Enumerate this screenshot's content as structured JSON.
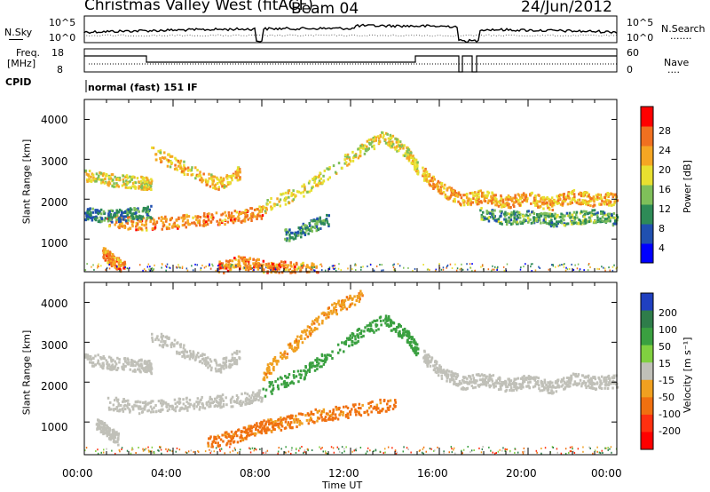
{
  "header": {
    "title": "Christmas Valley West (fitACF)",
    "beam": "Beam 04",
    "date": "24/Jun/2012"
  },
  "noise_panel": {
    "left_label": "N.Sky",
    "right_label": "N.Search",
    "left_ticks": [
      "10^5",
      "10^0"
    ],
    "right_ticks": [
      "10^5",
      "10^0"
    ],
    "legend_dots": "......."
  },
  "freq_panel": {
    "left_label_line1": "Freq.",
    "left_label_line2": "[MHz]",
    "right_label": "Nave",
    "left_ticks": [
      "18",
      "8"
    ],
    "right_ticks": [
      "60",
      "0"
    ],
    "legend_dots": "...."
  },
  "cpid": {
    "label": "CPID",
    "mode": "normal (fast) 151 IF"
  },
  "chart_data": [
    {
      "type": "heatmap",
      "panel": "power",
      "ylabel": "Slant Range [km]",
      "ylim": [
        180,
        4500
      ],
      "xlim": [
        0,
        24
      ],
      "yticks": [
        "1000",
        "2000",
        "3000",
        "4000"
      ],
      "colorbar": {
        "label": "Power [dB]",
        "ticks": [
          "28",
          "24",
          "20",
          "16",
          "12",
          "8",
          "4"
        ],
        "colors": [
          "#0000ff",
          "#2050b0",
          "#2e8b57",
          "#7fbf5a",
          "#e8e030",
          "#f5a623",
          "#f07020",
          "#ff0000"
        ]
      },
      "bands": [
        {
          "t": [
            0.0,
            1.2,
            2.4,
            3.0
          ],
          "r": [
            2600,
            2500,
            2450,
            2400
          ],
          "v": 18
        },
        {
          "t": [
            1.0,
            2.5,
            4.0,
            5.5,
            7.0,
            8.0
          ],
          "r": [
            1500,
            1400,
            1450,
            1520,
            1600,
            1700
          ],
          "v": 24
        },
        {
          "t": [
            0.8,
            1.2,
            1.8
          ],
          "r": [
            700,
            500,
            300
          ],
          "v": 24
        },
        {
          "t": [
            3.0,
            4.5,
            6.0,
            7.0
          ],
          "r": [
            3200,
            2800,
            2400,
            2700
          ],
          "v": 20
        },
        {
          "t": [
            8.0,
            10.0,
            12.0,
            13.5,
            14.5,
            15.0
          ],
          "r": [
            1800,
            2300,
            3100,
            3600,
            3200,
            2800
          ],
          "v": 18
        },
        {
          "t": [
            15.2,
            16.0,
            17.0,
            18.0,
            19.0,
            20.0,
            21.0,
            22.0,
            23.0,
            24.0
          ],
          "r": [
            2700,
            2300,
            2000,
            2100,
            1950,
            2050,
            1900,
            2100,
            2000,
            2050
          ],
          "v": 22
        },
        {
          "t": [
            17.8,
            19.0,
            20.0,
            21.0,
            22.0,
            23.0,
            24.0
          ],
          "r": [
            1650,
            1550,
            1600,
            1500,
            1550,
            1600,
            1500
          ],
          "v": 12
        },
        {
          "t": [
            0.0,
            1.0,
            2.0,
            3.0
          ],
          "r": [
            1650,
            1600,
            1650,
            1700
          ],
          "v": 10
        },
        {
          "t": [
            6.0,
            7.0,
            8.0,
            9.0,
            10.5
          ],
          "r": [
            300,
            450,
            350,
            300,
            250
          ],
          "v": 24
        },
        {
          "t": [
            9.0,
            10.0,
            11.0
          ],
          "r": [
            1100,
            1300,
            1500
          ],
          "v": 10
        }
      ]
    },
    {
      "type": "heatmap",
      "panel": "velocity",
      "ylabel": "Slant Range [km]",
      "ylim": [
        180,
        4500
      ],
      "xlim": [
        0,
        24
      ],
      "yticks": [
        "1000",
        "2000",
        "3000",
        "4000"
      ],
      "xticks": [
        "00:00",
        "04:00",
        "08:00",
        "12:00",
        "16:00",
        "20:00",
        "00:00"
      ],
      "xlabel": "Time UT",
      "colorbar": {
        "label": "Velocity [m s⁻¹]",
        "ticks": [
          "200",
          "100",
          "50",
          "15",
          "-15",
          "-50",
          "-100",
          "-200"
        ],
        "colors": [
          "#2040c0",
          "#2e7d4a",
          "#3aa040",
          "#80d040",
          "#c0c0b8",
          "#f0a020",
          "#f07010",
          "#ff3010",
          "#ff0000"
        ]
      },
      "bands": [
        {
          "t": [
            0.0,
            1.2,
            2.4,
            3.0
          ],
          "r": [
            2600,
            2500,
            2450,
            2400
          ],
          "v": 0
        },
        {
          "t": [
            1.0,
            2.5,
            4.0,
            5.5,
            7.0,
            8.0
          ],
          "r": [
            1500,
            1400,
            1450,
            1520,
            1600,
            1700
          ],
          "v": 0
        },
        {
          "t": [
            3.0,
            4.5,
            6.0,
            7.0
          ],
          "r": [
            3200,
            2800,
            2400,
            2700
          ],
          "v": 0
        },
        {
          "t": [
            8.0,
            10.0,
            12.0,
            13.5,
            14.5,
            15.0
          ],
          "r": [
            1800,
            2300,
            3100,
            3600,
            3200,
            2800
          ],
          "v": 70
        },
        {
          "t": [
            15.2,
            16.0,
            17.0,
            18.0,
            19.0,
            20.0,
            21.0,
            22.0,
            23.0,
            24.0
          ],
          "r": [
            2700,
            2300,
            2000,
            2100,
            1950,
            2050,
            1900,
            2100,
            2000,
            2050
          ],
          "v": 0
        },
        {
          "t": [
            5.5,
            7.0,
            8.0,
            9.0,
            10.5,
            12.0,
            14.0
          ],
          "r": [
            500,
            700,
            900,
            1000,
            1200,
            1300,
            1500
          ],
          "v": -60
        },
        {
          "t": [
            0.5,
            1.0,
            1.5
          ],
          "r": [
            1000,
            800,
            600
          ],
          "v": 0
        },
        {
          "t": [
            8.0,
            9.5,
            11.0,
            12.5
          ],
          "r": [
            2200,
            3000,
            3800,
            4200
          ],
          "v": -40
        }
      ]
    }
  ],
  "colors": {
    "frame": "#000000",
    "background": "#ffffff"
  }
}
